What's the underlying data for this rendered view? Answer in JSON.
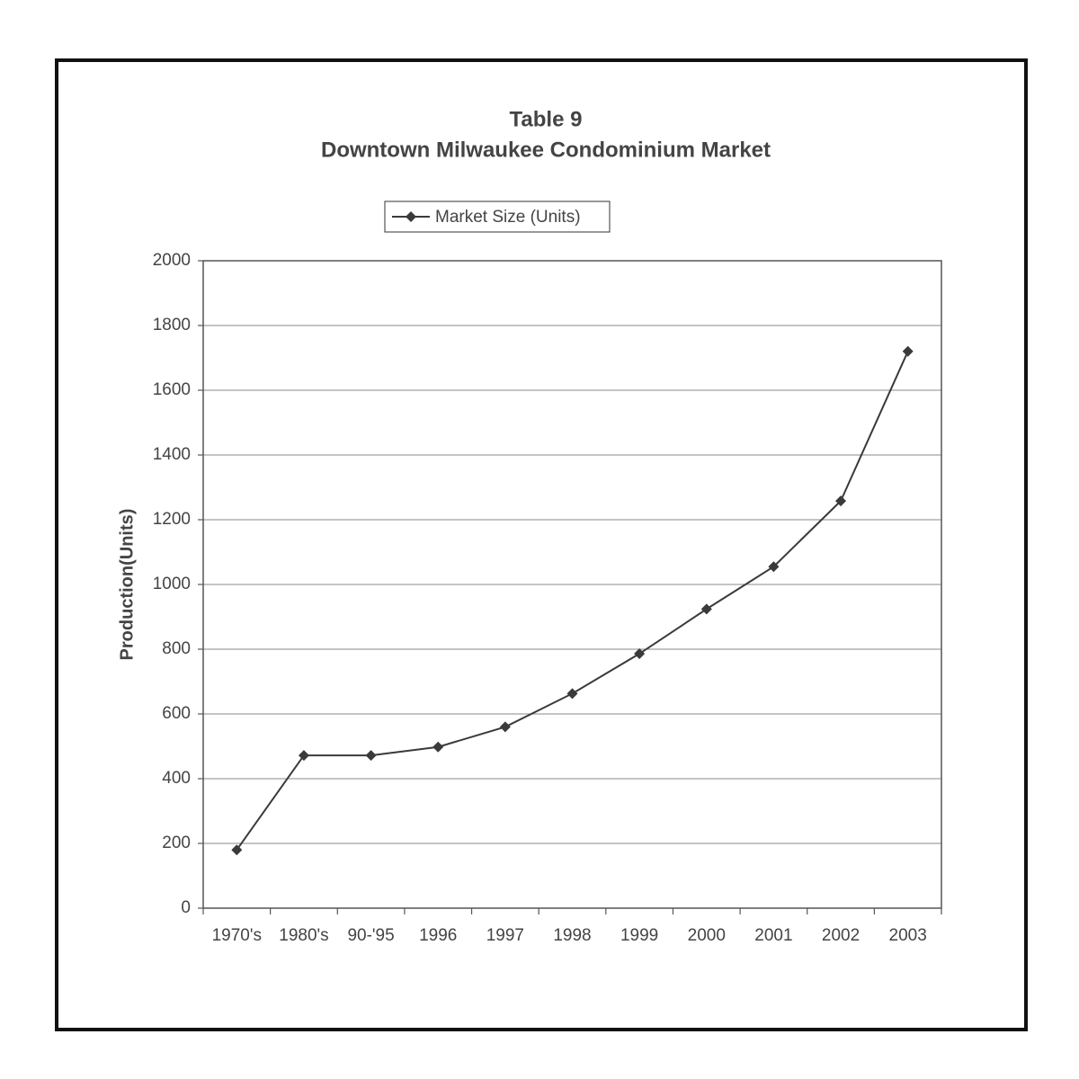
{
  "chart_data": {
    "type": "line",
    "title": "Table 9",
    "subtitle": "Downtown Milwaukee Condominium Market",
    "y_label": "Production(Units)",
    "categories": [
      "1970's",
      "1980's",
      "90-'95",
      "1996",
      "1997",
      "1998",
      "1999",
      "2000",
      "2001",
      "2002",
      "2003"
    ],
    "series": [
      {
        "name": "Market Size (Units)",
        "color": "#3a3a3a",
        "values": [
          180,
          472,
          472,
          498,
          560,
          663,
          786,
          924,
          1055,
          1258,
          1720
        ]
      }
    ],
    "ylim": [
      0,
      2000
    ],
    "yticks": [
      0,
      200,
      400,
      600,
      800,
      1000,
      1200,
      1400,
      1600,
      1800,
      2000
    ],
    "grid": true,
    "legend": "top"
  }
}
